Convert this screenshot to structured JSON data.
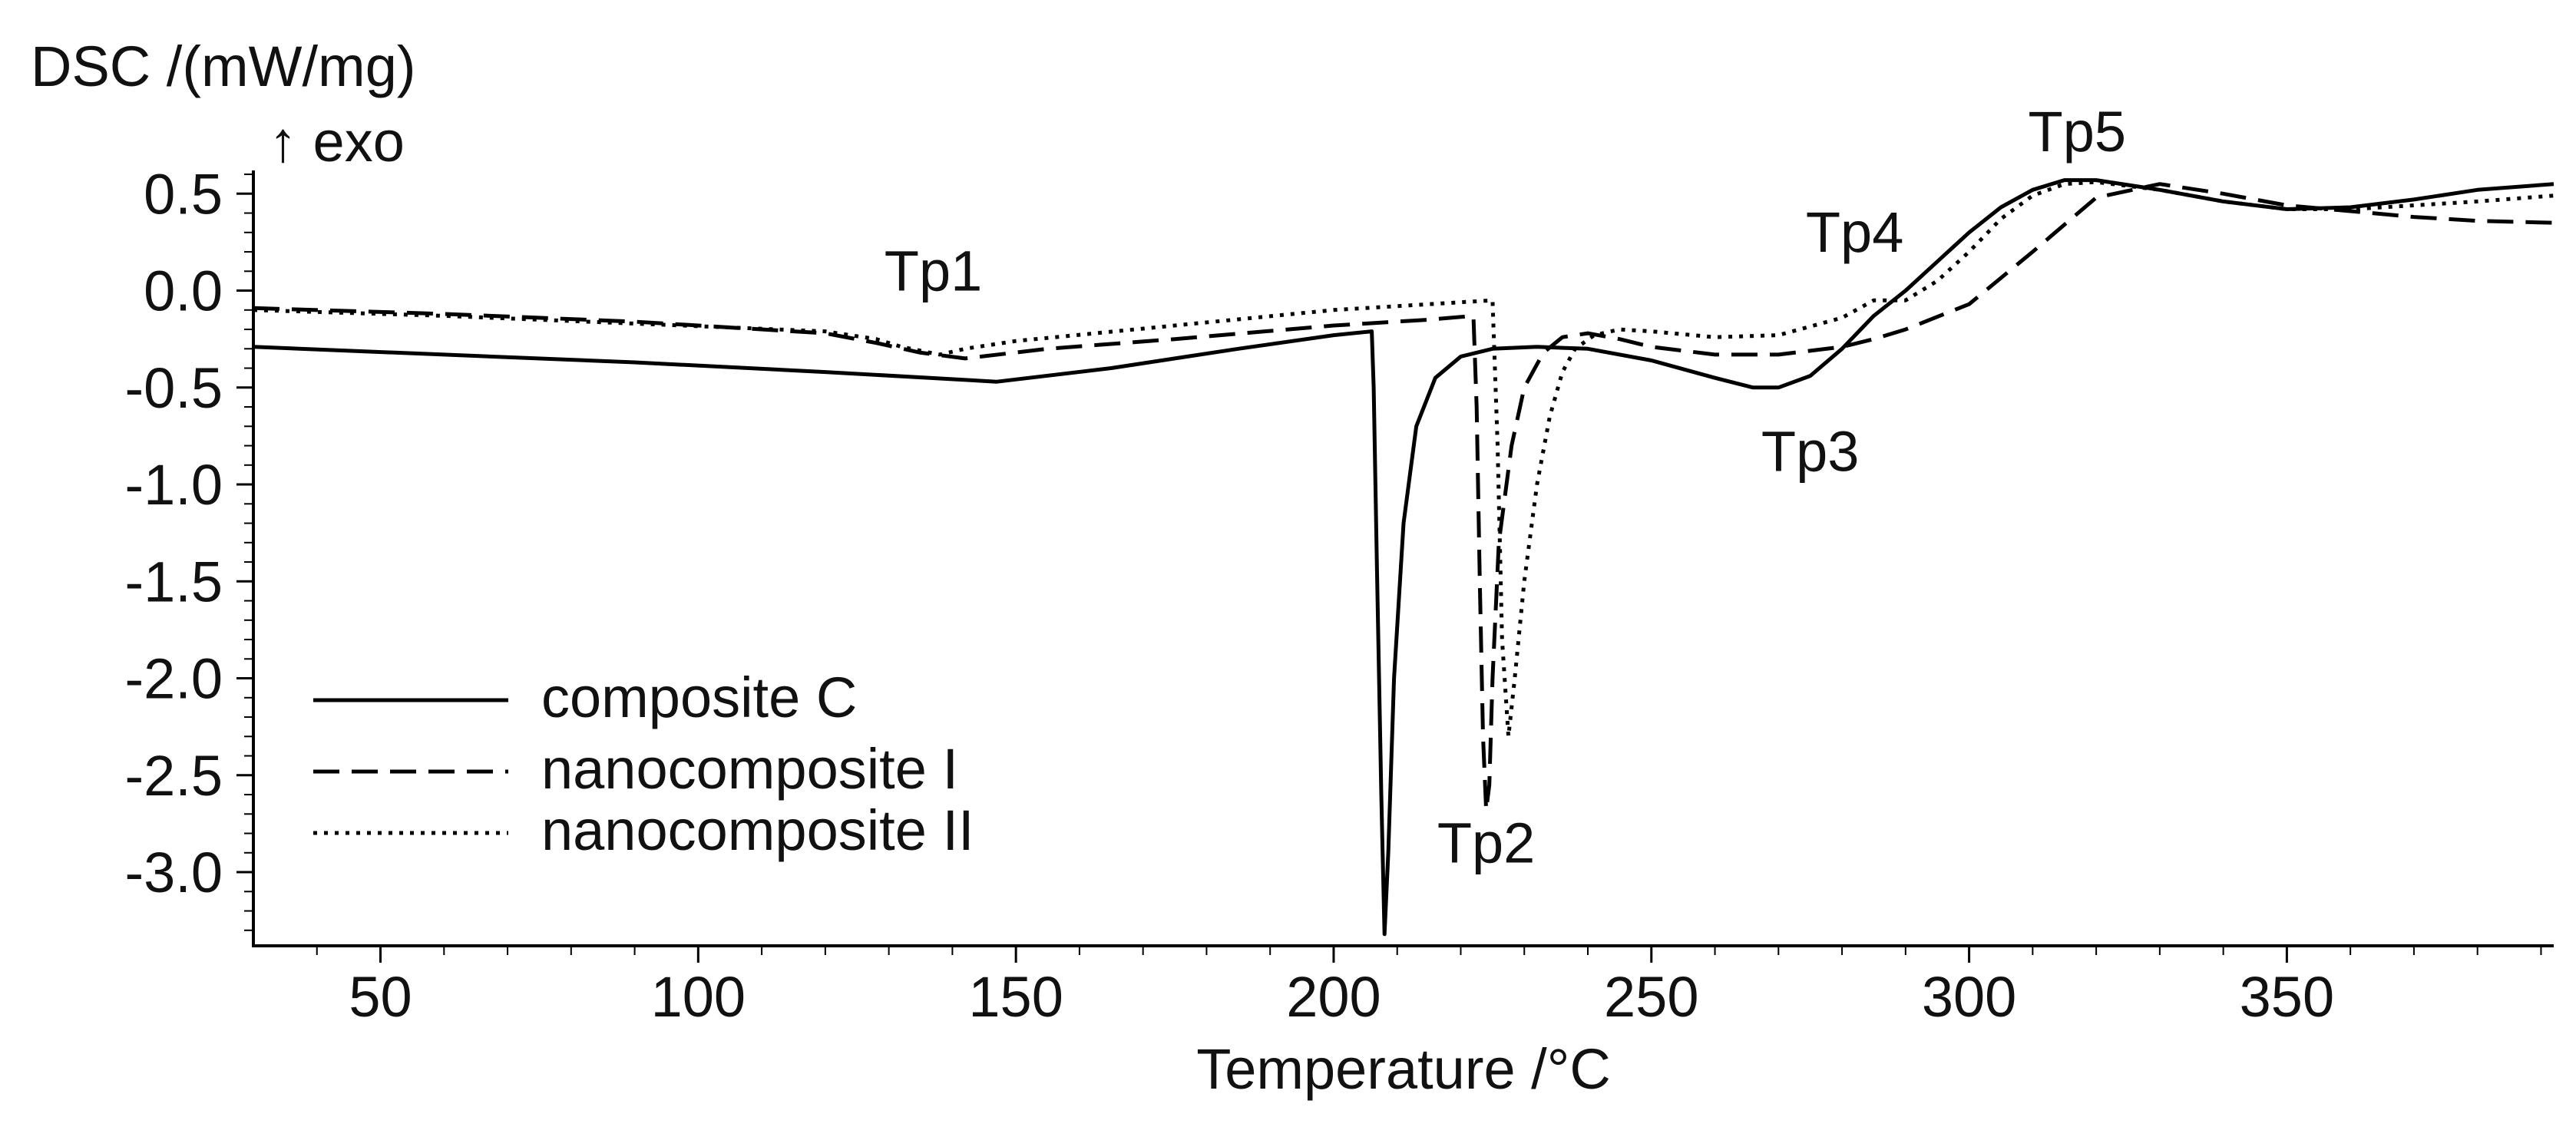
{
  "chart_data": {
    "type": "line",
    "title": "",
    "ylabel": "DSC /(mW/mg)",
    "ylabel_secondary": "↑ exo",
    "xlabel": "Temperature /°C",
    "xlim": [
      30,
      392
    ],
    "ylim": [
      -3.38,
      0.62
    ],
    "x_ticks": [
      50,
      100,
      150,
      200,
      250,
      300,
      350
    ],
    "y_ticks": [
      0.5,
      0.0,
      -0.5,
      -1.0,
      -1.5,
      -2.0,
      -2.5,
      -3.0
    ],
    "x_tick_labels": [
      "50",
      "100",
      "150",
      "200",
      "250",
      "300",
      "350"
    ],
    "y_tick_labels": [
      "0.5",
      "0.0",
      "-0.5",
      "-1.0",
      "-1.5",
      "-2.0",
      "-2.5",
      "-3.0"
    ],
    "legend_position": "lower-left",
    "series": [
      {
        "name": "composite C",
        "style": "solid",
        "x": [
          30,
          60,
          90,
          120,
          147,
          165,
          185,
          200,
          206,
          206.3,
          206.8,
          207.5,
          208,
          208.6,
          209.5,
          211,
          213,
          216,
          220,
          225,
          232,
          240,
          250,
          260,
          266,
          270,
          275,
          280,
          285,
          290,
          295,
          300,
          305,
          310,
          315,
          320,
          330,
          340,
          350,
          360,
          370,
          380,
          392
        ],
        "y": [
          -0.29,
          -0.33,
          -0.37,
          -0.42,
          -0.47,
          -0.4,
          -0.3,
          -0.23,
          -0.21,
          -0.5,
          -1.4,
          -2.6,
          -3.32,
          -2.9,
          -2.0,
          -1.2,
          -0.7,
          -0.45,
          -0.34,
          -0.3,
          -0.29,
          -0.3,
          -0.36,
          -0.45,
          -0.5,
          -0.5,
          -0.44,
          -0.3,
          -0.13,
          0.0,
          0.15,
          0.3,
          0.43,
          0.52,
          0.57,
          0.57,
          0.52,
          0.46,
          0.42,
          0.43,
          0.47,
          0.52,
          0.55
        ]
      },
      {
        "name": "nanocomposite I",
        "style": "dashed",
        "x": [
          30,
          60,
          90,
          120,
          128,
          135,
          142,
          155,
          175,
          200,
          215,
          222,
          222.5,
          223,
          223.5,
          224,
          224.5,
          225,
          226,
          228,
          230,
          233,
          236,
          240,
          245,
          250,
          260,
          270,
          280,
          285,
          290,
          300,
          310,
          320,
          330,
          340,
          350,
          360,
          370,
          380,
          392
        ],
        "y": [
          -0.09,
          -0.12,
          -0.16,
          -0.22,
          -0.27,
          -0.32,
          -0.35,
          -0.3,
          -0.25,
          -0.18,
          -0.15,
          -0.13,
          -0.6,
          -1.5,
          -2.3,
          -2.68,
          -2.55,
          -2.0,
          -1.3,
          -0.8,
          -0.5,
          -0.32,
          -0.24,
          -0.22,
          -0.25,
          -0.29,
          -0.33,
          -0.33,
          -0.29,
          -0.25,
          -0.2,
          -0.07,
          0.2,
          0.48,
          0.55,
          0.5,
          0.44,
          0.41,
          0.38,
          0.36,
          0.35
        ]
      },
      {
        "name": "nanocomposite II",
        "style": "dotted",
        "x": [
          30,
          60,
          90,
          120,
          128,
          132,
          138,
          142,
          150,
          175,
          200,
          220,
          225,
          225.8,
          226.5,
          227.5,
          228.5,
          230,
          232,
          234,
          236,
          238,
          241,
          245,
          250,
          260,
          270,
          280,
          285,
          290,
          295,
          300,
          305,
          310,
          315,
          320,
          330,
          340,
          350,
          360,
          370,
          380,
          392
        ],
        "y": [
          -0.1,
          -0.13,
          -0.17,
          -0.21,
          -0.25,
          -0.29,
          -0.33,
          -0.3,
          -0.26,
          -0.18,
          -0.1,
          -0.06,
          -0.05,
          -0.8,
          -1.8,
          -2.3,
          -2.0,
          -1.5,
          -1.0,
          -0.65,
          -0.42,
          -0.3,
          -0.23,
          -0.2,
          -0.21,
          -0.24,
          -0.23,
          -0.14,
          -0.05,
          -0.05,
          0.05,
          0.2,
          0.37,
          0.49,
          0.55,
          0.56,
          0.52,
          0.46,
          0.42,
          0.42,
          0.44,
          0.46,
          0.49
        ]
      }
    ],
    "annotations": [
      {
        "text": "Tp1",
        "x": 137,
        "y": 0.0
      },
      {
        "text": "Tp2",
        "x": 224,
        "y": -2.95
      },
      {
        "text": "Tp3",
        "x": 275,
        "y": -0.93
      },
      {
        "text": "Tp4",
        "x": 282,
        "y": 0.2
      },
      {
        "text": "Tp5",
        "x": 317,
        "y": 0.72
      }
    ]
  }
}
